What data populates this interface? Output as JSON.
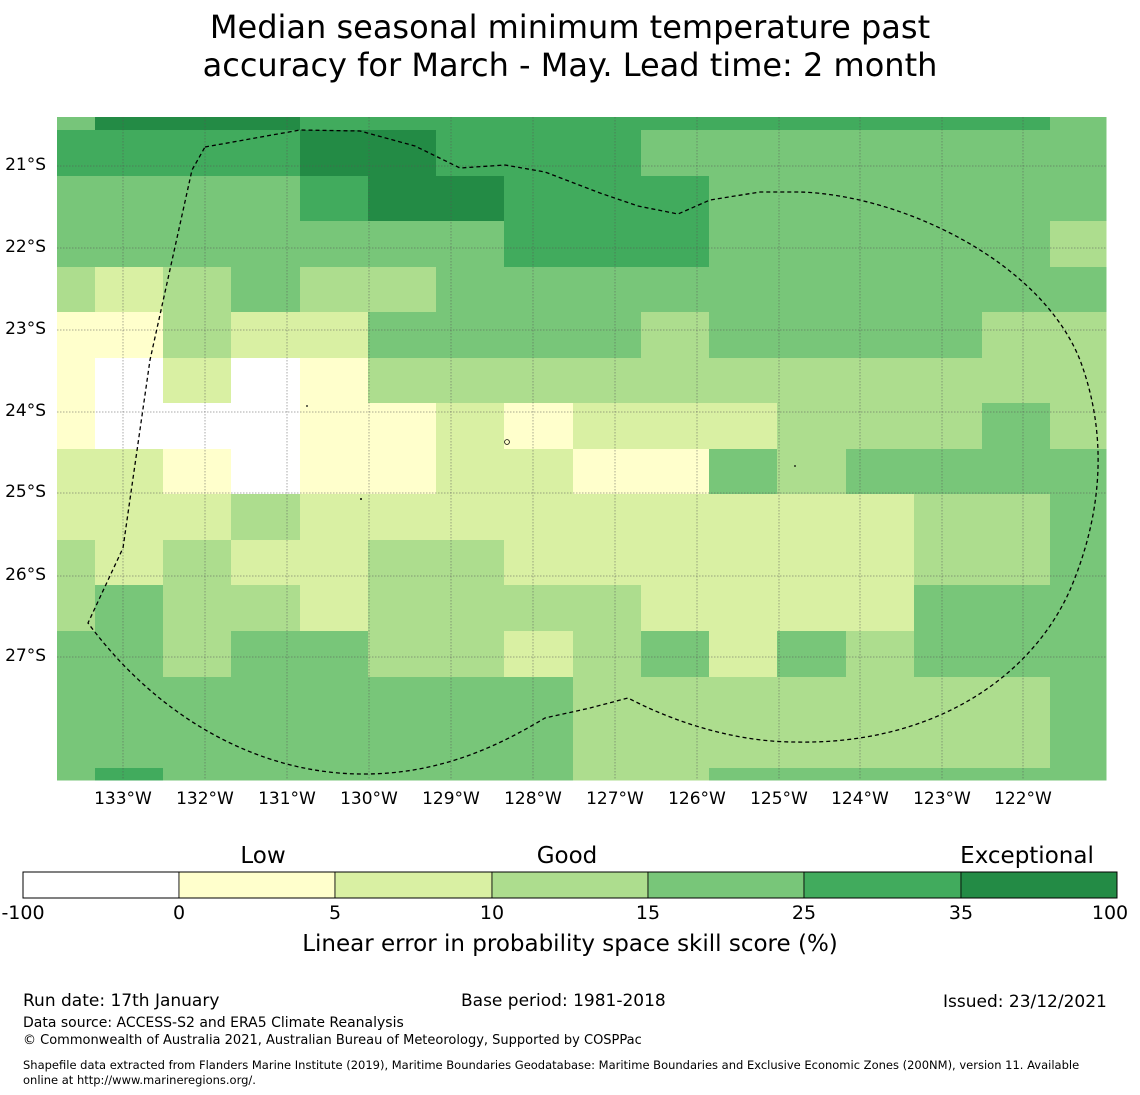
{
  "title_line1": "Median seasonal minimum temperature past",
  "title_line2": "accuracy for March - May. Lead time: 2 month",
  "map": {
    "grid_colors": [
      [
        "#77c57a",
        "#238b45",
        "#238b45",
        "#238b45",
        "#41ab5d",
        "#41ab5d",
        "#41ab5d",
        "#41ab5d",
        "#41ab5d",
        "#41ab5d",
        "#41ab5d",
        "#41ab5d",
        "#41ab5d",
        "#41ab5d",
        "#41ab5d",
        "#78c679",
        "#41ab5d"
      ],
      [
        "#41ab5d",
        "#41ab5d",
        "#41ab5d",
        "#41ab5d",
        "#238b45",
        "#238b45",
        "#41ab5d",
        "#41ab5d",
        "#41ab5d",
        "#78c679",
        "#78c679",
        "#78c679",
        "#78c679",
        "#78c679",
        "#78c679",
        "#78c679",
        "#78c679"
      ],
      [
        "#78c679",
        "#78c679",
        "#78c679",
        "#78c679",
        "#41ab5d",
        "#238b45",
        "#238b45",
        "#41ab5d",
        "#41ab5d",
        "#41ab5d",
        "#78c679",
        "#78c679",
        "#78c679",
        "#78c679",
        "#78c679",
        "#78c679",
        "#78c679"
      ],
      [
        "#78c679",
        "#78c679",
        "#78c679",
        "#78c679",
        "#78c679",
        "#78c679",
        "#78c679",
        "#41ab5d",
        "#41ab5d",
        "#41ab5d",
        "#78c679",
        "#78c679",
        "#78c679",
        "#78c679",
        "#78c679",
        "#addd8e",
        "#addd8e"
      ],
      [
        "#addd8e",
        "#d9f0a3",
        "#addd8e",
        "#78c679",
        "#addd8e",
        "#addd8e",
        "#78c679",
        "#78c679",
        "#78c679",
        "#78c679",
        "#78c679",
        "#78c679",
        "#78c679",
        "#78c679",
        "#78c679",
        "#78c679",
        "#78c679"
      ],
      [
        "#ffffcc",
        "#ffffcc",
        "#addd8e",
        "#d9f0a3",
        "#d9f0a3",
        "#78c679",
        "#78c679",
        "#78c679",
        "#78c679",
        "#addd8e",
        "#78c679",
        "#78c679",
        "#78c679",
        "#78c679",
        "#addd8e",
        "#addd8e",
        "#78c679"
      ],
      [
        "#ffffcc",
        "#ffffff",
        "#d9f0a3",
        "#ffffff",
        "#ffffcc",
        "#addd8e",
        "#addd8e",
        "#addd8e",
        "#addd8e",
        "#addd8e",
        "#addd8e",
        "#addd8e",
        "#addd8e",
        "#addd8e",
        "#addd8e",
        "#addd8e",
        "#78c679"
      ],
      [
        "#ffffcc",
        "#ffffff",
        "#ffffff",
        "#ffffff",
        "#ffffcc",
        "#ffffcc",
        "#d9f0a3",
        "#ffffcc",
        "#d9f0a3",
        "#d9f0a3",
        "#d9f0a3",
        "#addd8e",
        "#addd8e",
        "#addd8e",
        "#78c679",
        "#addd8e",
        "#addd8e"
      ],
      [
        "#d9f0a3",
        "#d9f0a3",
        "#ffffcc",
        "#ffffff",
        "#ffffcc",
        "#ffffcc",
        "#d9f0a3",
        "#d9f0a3",
        "#ffffcc",
        "#ffffcc",
        "#78c679",
        "#addd8e",
        "#78c679",
        "#78c679",
        "#78c679",
        "#78c679",
        "#78c679"
      ],
      [
        "#d9f0a3",
        "#d9f0a3",
        "#d9f0a3",
        "#addd8e",
        "#d9f0a3",
        "#d9f0a3",
        "#d9f0a3",
        "#d9f0a3",
        "#d9f0a3",
        "#d9f0a3",
        "#d9f0a3",
        "#d9f0a3",
        "#d9f0a3",
        "#addd8e",
        "#addd8e",
        "#78c679",
        "#78c679"
      ],
      [
        "#addd8e",
        "#d9f0a3",
        "#addd8e",
        "#d9f0a3",
        "#d9f0a3",
        "#addd8e",
        "#addd8e",
        "#d9f0a3",
        "#d9f0a3",
        "#d9f0a3",
        "#d9f0a3",
        "#d9f0a3",
        "#d9f0a3",
        "#addd8e",
        "#addd8e",
        "#78c679",
        "#78c679"
      ],
      [
        "#addd8e",
        "#78c679",
        "#addd8e",
        "#addd8e",
        "#d9f0a3",
        "#addd8e",
        "#addd8e",
        "#addd8e",
        "#addd8e",
        "#d9f0a3",
        "#d9f0a3",
        "#d9f0a3",
        "#d9f0a3",
        "#78c679",
        "#78c679",
        "#78c679",
        "#78c679"
      ],
      [
        "#78c679",
        "#78c679",
        "#addd8e",
        "#78c679",
        "#78c679",
        "#addd8e",
        "#addd8e",
        "#d9f0a3",
        "#addd8e",
        "#78c679",
        "#d9f0a3",
        "#78c679",
        "#addd8e",
        "#78c679",
        "#78c679",
        "#78c679",
        "#78c679"
      ],
      [
        "#78c679",
        "#78c679",
        "#78c679",
        "#78c679",
        "#78c679",
        "#78c679",
        "#78c679",
        "#78c679",
        "#addd8e",
        "#addd8e",
        "#addd8e",
        "#addd8e",
        "#addd8e",
        "#addd8e",
        "#addd8e",
        "#78c679",
        "#78c679"
      ],
      [
        "#78c679",
        "#78c679",
        "#78c679",
        "#78c679",
        "#78c679",
        "#78c679",
        "#78c679",
        "#78c679",
        "#addd8e",
        "#addd8e",
        "#addd8e",
        "#addd8e",
        "#addd8e",
        "#addd8e",
        "#addd8e",
        "#78c679",
        "#78c679"
      ],
      [
        "#78c679",
        "#41ab5d",
        "#78c679",
        "#78c679",
        "#78c679",
        "#78c679",
        "#78c679",
        "#78c679",
        "#addd8e",
        "#addd8e",
        "#78c679",
        "#78c679",
        "#78c679",
        "#78c679",
        "#78c679",
        "#78c679",
        "#78c679"
      ]
    ],
    "lat_labels": [
      "21°S",
      "22°S",
      "23°S",
      "24°S",
      "25°S",
      "26°S",
      "27°S"
    ],
    "lon_labels": [
      "133°W",
      "132°W",
      "131°W",
      "130°W",
      "129°W",
      "128°W",
      "127°W",
      "126°W",
      "125°W",
      "124°W",
      "123°W",
      "122°W"
    ],
    "boundary_style": "dashed",
    "boundary_color": "#000000",
    "gridline_color": "#555555"
  },
  "legend": {
    "categories": [
      "Low",
      "Good",
      "Exceptional"
    ],
    "ticks": [
      "-100",
      "0",
      "5",
      "10",
      "15",
      "25",
      "35",
      "100"
    ],
    "colors": [
      "#ffffff",
      "#ffffcc",
      "#d9f0a3",
      "#addd8e",
      "#78c679",
      "#41ab5d",
      "#238b45"
    ],
    "label": "Linear error in probability space skill score (%)"
  },
  "footer": {
    "run_date": "Run date: 17th January",
    "base_period": "Base period: 1981-2018",
    "issued": "Issued: 23/12/2021",
    "data_source": "Data source: ACCESS-S2 and ERA5 Climate Reanalysis",
    "copyright": "© Commonwealth of Australia 2021, Australian Bureau of Meteorology, Supported by COSPPac",
    "shapefile_line1": "Shapefile data extracted from Flanders Marine Institute (2019), Maritime Boundaries Geodatabase: Maritime Boundaries and Exclusive Economic Zones (200NM), version 11. Available",
    "shapefile_line2": "online at http://www.marineregions.org/."
  }
}
